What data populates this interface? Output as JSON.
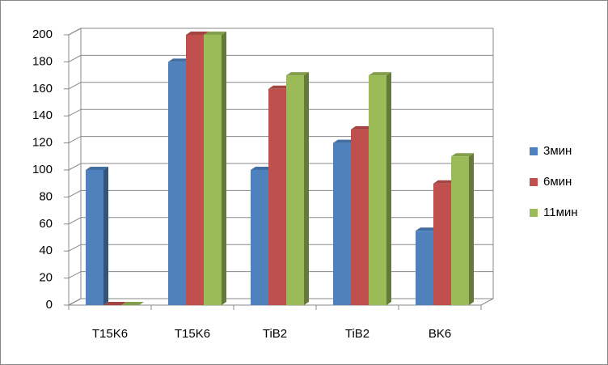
{
  "chart_data": {
    "type": "bar",
    "categories": [
      "T15K6",
      "T15K6",
      "TiB2",
      "TiB2",
      "BK6"
    ],
    "series": [
      {
        "name": "3мин",
        "color": "#4f81bd",
        "values": [
          100,
          180,
          100,
          120,
          55
        ]
      },
      {
        "name": "6мин",
        "color": "#c0504d",
        "values": [
          0,
          200,
          160,
          130,
          90
        ]
      },
      {
        "name": "11мин",
        "color": "#9bbb59",
        "values": [
          0,
          200,
          170,
          170,
          110
        ]
      }
    ],
    "ylim": [
      0,
      200
    ],
    "yticks": [
      0,
      20,
      40,
      60,
      80,
      100,
      120,
      140,
      160,
      180,
      200
    ],
    "grid": true,
    "legend": "right"
  }
}
